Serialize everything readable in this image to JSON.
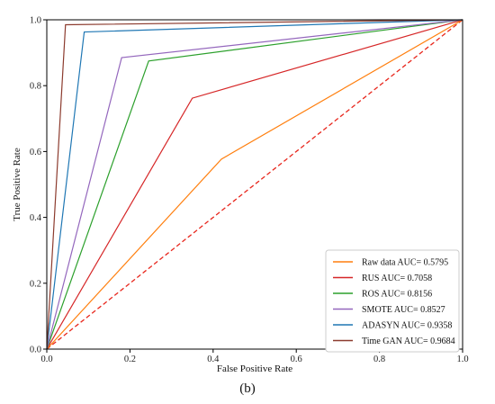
{
  "chart_data": {
    "type": "line",
    "xlabel": "False Positive Rate",
    "ylabel": "True Positive Rate",
    "xlim": [
      0,
      1
    ],
    "ylim": [
      0,
      1
    ],
    "xticks": [
      "0.0",
      "0.2",
      "0.4",
      "0.6",
      "0.8",
      "1.0"
    ],
    "yticks": [
      "0.0",
      "0.2",
      "0.4",
      "0.6",
      "0.8",
      "1.0"
    ],
    "grid": false,
    "legend_position": "bottom-right",
    "series": [
      {
        "name": "Raw data AUC= 0.5795",
        "color": "#ff7f0e",
        "x": [
          0,
          0.42,
          1
        ],
        "y": [
          0,
          0.577,
          1
        ]
      },
      {
        "name": "RUS AUC= 0.7058",
        "color": "#d62728",
        "x": [
          0,
          0.35,
          1
        ],
        "y": [
          0,
          0.762,
          1
        ]
      },
      {
        "name": "ROS AUC= 0.8156",
        "color": "#2ca02c",
        "x": [
          0,
          0.245,
          1
        ],
        "y": [
          0,
          0.875,
          1
        ]
      },
      {
        "name": "SMOTE AUC= 0.8527",
        "color": "#9467bd",
        "x": [
          0,
          0.18,
          1
        ],
        "y": [
          0,
          0.885,
          1
        ]
      },
      {
        "name": "ADASYN AUC= 0.9358",
        "color": "#1f77b4",
        "x": [
          0,
          0.09,
          1
        ],
        "y": [
          0,
          0.963,
          1
        ]
      },
      {
        "name": "Time GAN AUC= 0.9684",
        "color": "#8c3b2e",
        "x": [
          0,
          0.045,
          1
        ],
        "y": [
          0,
          0.985,
          1
        ]
      }
    ],
    "reference_line": {
      "x": [
        0,
        1
      ],
      "y": [
        0,
        1
      ],
      "color": "#e8261c",
      "style": "dashed"
    }
  },
  "caption": "(b)"
}
